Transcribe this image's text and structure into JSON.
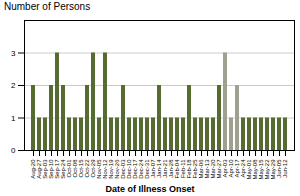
{
  "chart_data": {
    "type": "bar",
    "title": "Number of Persons",
    "xlabel": "Date of Illness Onset",
    "categories": [
      "Aug-20",
      "Aug-27",
      "Sep-03",
      "Sep-10",
      "Sep-17",
      "Sep-24",
      "Oct-01",
      "Oct-08",
      "Oct-15",
      "Oct-22",
      "Oct-29",
      "Nov-05",
      "Nov-12",
      "Nov-19",
      "Nov-26",
      "Dec-03",
      "Dec-10",
      "Dec-17",
      "Dec-24",
      "Dec-31",
      "Jan-07",
      "Jan-14",
      "Jan-21",
      "Jan-28",
      "Feb-04",
      "Feb-11",
      "Feb-18",
      "Feb-25",
      "Mar-06",
      "Mar-13",
      "Mar-20",
      "Mar-27",
      "Apr-03",
      "Apr-10",
      "Apr-17",
      "Apr-24",
      "May-01",
      "May-08",
      "May-15",
      "May-22",
      "May-29",
      "Jun-05",
      "Jun-12"
    ],
    "values": [
      2,
      1,
      1,
      2,
      3,
      2,
      1,
      1,
      1,
      2,
      3,
      1,
      3,
      1,
      1,
      2,
      1,
      1,
      1,
      1,
      1,
      2,
      1,
      1,
      1,
      1,
      2,
      1,
      1,
      1,
      1,
      2,
      3,
      1,
      2,
      1,
      1,
      1,
      1,
      1,
      1,
      1,
      1
    ],
    "colors": [
      "#556b2f",
      "#556b2f",
      "#556b2f",
      "#556b2f",
      "#556b2f",
      "#556b2f",
      "#556b2f",
      "#556b2f",
      "#556b2f",
      "#556b2f",
      "#556b2f",
      "#556b2f",
      "#556b2f",
      "#556b2f",
      "#556b2f",
      "#556b2f",
      "#556b2f",
      "#556b2f",
      "#556b2f",
      "#556b2f",
      "#556b2f",
      "#556b2f",
      "#556b2f",
      "#556b2f",
      "#556b2f",
      "#556b2f",
      "#556b2f",
      "#556b2f",
      "#556b2f",
      "#556b2f",
      "#556b2f",
      "#556b2f",
      "#a0a090",
      "#a0a090",
      "#a0a090",
      "#556b2f",
      "#556b2f",
      "#556b2f",
      "#556b2f",
      "#556b2f",
      "#556b2f",
      "#556b2f",
      "#556b2f"
    ],
    "ylim": [
      0,
      4
    ],
    "yticks": [
      0,
      1,
      2,
      3
    ],
    "grid": true
  }
}
